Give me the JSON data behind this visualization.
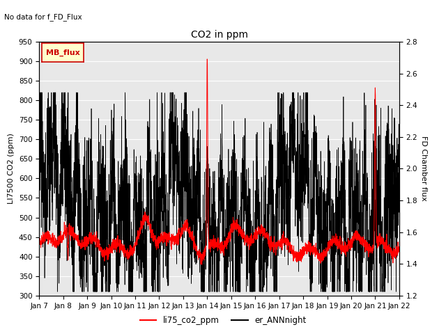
{
  "title": "CO2 in ppm",
  "subtitle": "No data for f_FD_Flux",
  "ylabel_left": "LI7500 CO2 (ppm)",
  "ylabel_right": "FD Chamber flux",
  "ylim_left": [
    300,
    950
  ],
  "ylim_right": [
    1.2,
    2.8
  ],
  "yticks_left": [
    300,
    350,
    400,
    450,
    500,
    550,
    600,
    650,
    700,
    750,
    800,
    850,
    900,
    950
  ],
  "yticks_right": [
    1.2,
    1.4,
    1.6,
    1.8,
    2.0,
    2.2,
    2.4,
    2.6,
    2.8
  ],
  "xtick_labels": [
    "Jan 7",
    "Jan 8",
    "Jan 9",
    "Jan 10",
    "Jan 11",
    "Jan 12",
    "Jan 13",
    "Jan 14",
    "Jan 15",
    "Jan 16",
    "Jan 17",
    "Jan 18",
    "Jan 19",
    "Jan 20",
    "Jan 21",
    "Jan 22"
  ],
  "legend_labels": [
    "li75_co2_ppm",
    "er_ANNnight"
  ],
  "legend_colors": [
    "red",
    "black"
  ],
  "inset_label": "MB_flux",
  "inset_color": "#cc0000",
  "plot_bg_color": "#e8e8e8",
  "grid_color": "white",
  "n_points": 3000,
  "seed": 42
}
